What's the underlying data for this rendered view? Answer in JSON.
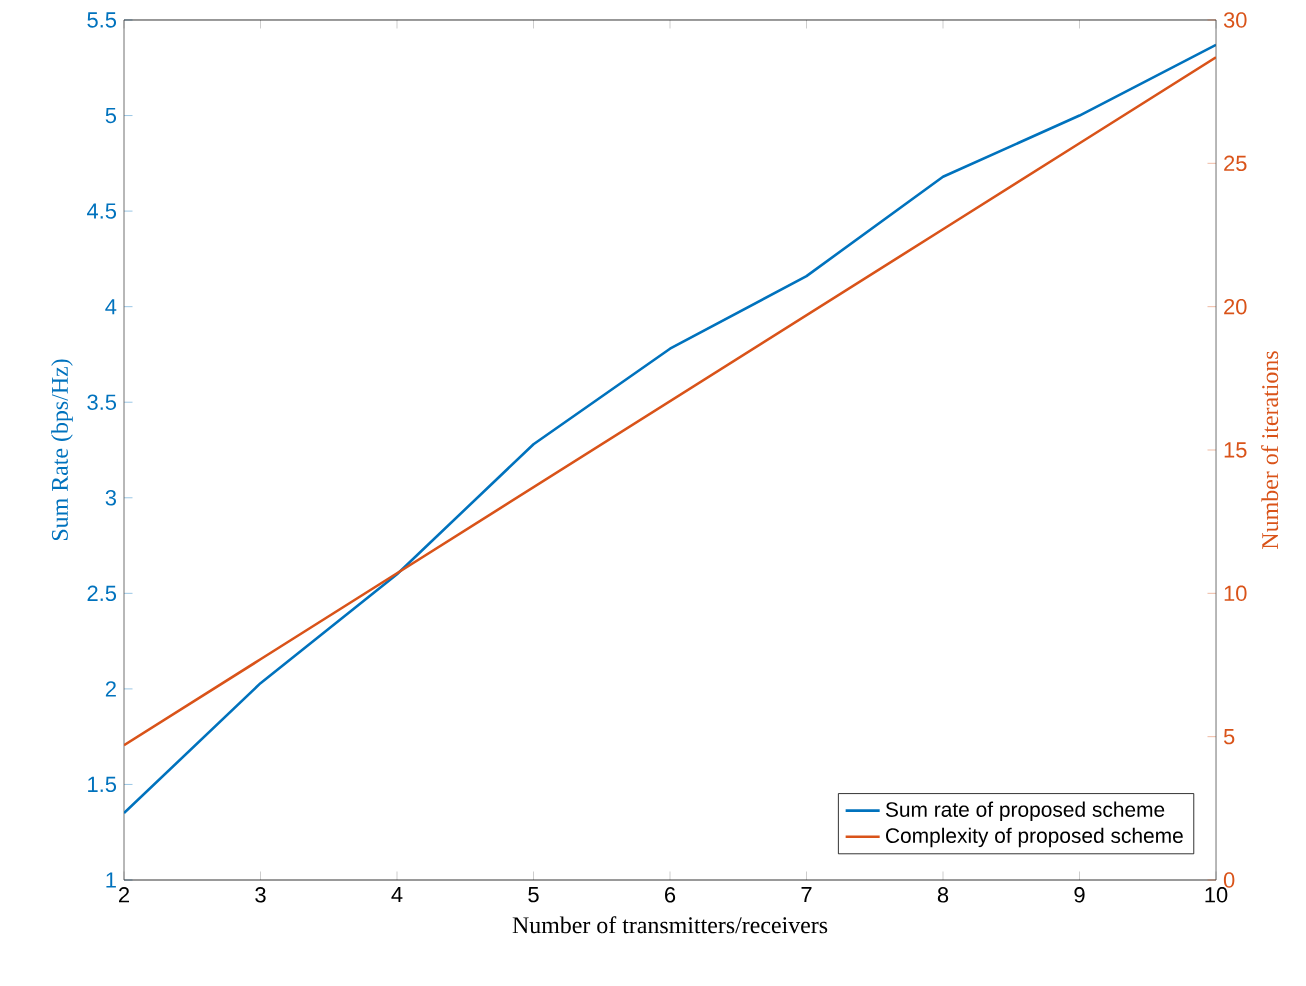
{
  "chart_data": {
    "type": "line",
    "xlabel": "Number of transmitters/receivers",
    "ylabel": "Sum Rate (bps/Hz)",
    "y2label": "Number of iterations",
    "x": [
      2,
      3,
      4,
      5,
      6,
      7,
      8,
      9,
      10
    ],
    "series": [
      {
        "name": "Sum rate of proposed scheme",
        "color": "#0072bd",
        "values": [
          1.35,
          2.03,
          2.6,
          3.28,
          3.78,
          4.16,
          4.68,
          5.0,
          5.37
        ]
      },
      {
        "name": "Complexity of proposed scheme",
        "color": "#d95319",
        "axis": "y2",
        "values": [
          4.7,
          7.7,
          10.7,
          13.7,
          16.7,
          19.7,
          22.7,
          25.7,
          28.7
        ]
      }
    ],
    "xlim": [
      2,
      10
    ],
    "ylim": [
      1,
      5.5
    ],
    "y2lim": [
      0,
      30
    ],
    "xticks": [
      2,
      3,
      4,
      5,
      6,
      7,
      8,
      9,
      10
    ],
    "yticks": [
      1,
      1.5,
      2,
      2.5,
      3,
      3.5,
      4,
      4.5,
      5,
      5.5
    ],
    "y2ticks": [
      0,
      5,
      10,
      15,
      20,
      25,
      30
    ],
    "legend": "bottom right"
  }
}
